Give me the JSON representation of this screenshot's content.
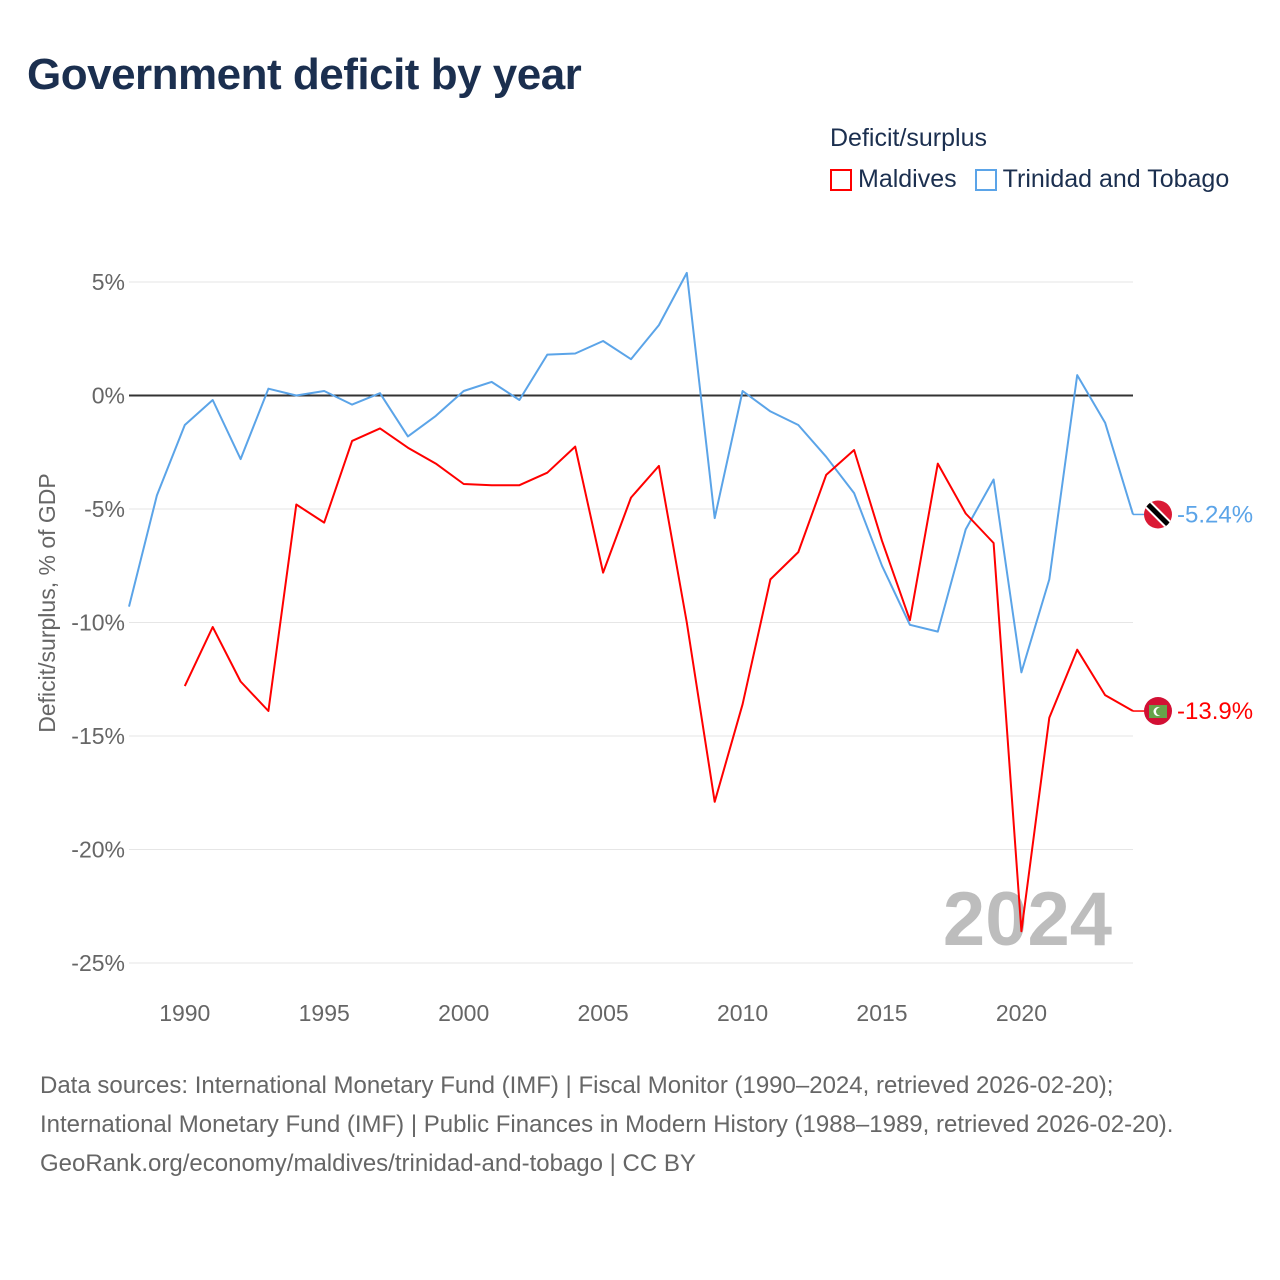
{
  "title": "Government deficit by year",
  "legend": {
    "title": "Deficit/surplus",
    "items": [
      {
        "label": "Maldives",
        "color": "#ff0000"
      },
      {
        "label": "Trinidad and Tobago",
        "color": "#5ba4e8"
      }
    ]
  },
  "chart_data": {
    "type": "line",
    "title": "Government deficit by year",
    "ylabel": "Deficit/surplus, % of GDP",
    "xlabel": "",
    "ylim": [
      -25,
      5
    ],
    "xlim": [
      1988,
      2024
    ],
    "yticks": [
      5,
      0,
      -5,
      -10,
      -15,
      -20,
      -25
    ],
    "ytick_labels": [
      "5%",
      "0%",
      "-5%",
      "-10%",
      "-15%",
      "-20%",
      "-25%"
    ],
    "xticks": [
      1990,
      1995,
      2000,
      2005,
      2010,
      2015,
      2020
    ],
    "xtick_labels": [
      "1990",
      "1995",
      "2000",
      "2005",
      "2010",
      "2015",
      "2020"
    ],
    "watermark_year": "2024",
    "grid": true,
    "series": [
      {
        "name": "Maldives",
        "color": "#ff0000",
        "end_label": "-13.9%",
        "flag": "maldives-flag",
        "x": [
          1990,
          1991,
          1992,
          1993,
          1994,
          1995,
          1996,
          1997,
          1998,
          1999,
          2000,
          2001,
          2002,
          2003,
          2004,
          2005,
          2006,
          2007,
          2008,
          2009,
          2010,
          2011,
          2012,
          2013,
          2014,
          2015,
          2016,
          2017,
          2018,
          2019,
          2020,
          2021,
          2022,
          2023,
          2024
        ],
        "values": [
          -12.8,
          -10.2,
          -12.6,
          -13.9,
          -4.8,
          -5.6,
          -2.0,
          -1.45,
          -2.3,
          -3.0,
          -3.9,
          -3.95,
          -3.95,
          -3.4,
          -2.25,
          -7.8,
          -4.5,
          -3.1,
          -10.0,
          -17.9,
          -13.6,
          -8.1,
          -6.9,
          -3.5,
          -2.4,
          -6.4,
          -9.9,
          -3.0,
          -5.2,
          -6.5,
          -23.6,
          -14.2,
          -11.2,
          -13.2,
          -13.9
        ]
      },
      {
        "name": "Trinidad and Tobago",
        "color": "#5ba4e8",
        "end_label": "-5.24%",
        "flag": "trinidad-flag",
        "x": [
          1988,
          1989,
          1990,
          1991,
          1992,
          1993,
          1994,
          1995,
          1996,
          1997,
          1998,
          1999,
          2000,
          2001,
          2002,
          2003,
          2004,
          2005,
          2006,
          2007,
          2008,
          2009,
          2010,
          2011,
          2012,
          2013,
          2014,
          2015,
          2016,
          2017,
          2018,
          2019,
          2020,
          2021,
          2022,
          2023,
          2024
        ],
        "values": [
          -9.3,
          -4.4,
          -1.3,
          -0.2,
          -2.8,
          0.3,
          0.0,
          0.2,
          -0.4,
          0.1,
          -1.8,
          -0.9,
          0.2,
          0.6,
          -0.2,
          1.8,
          1.85,
          2.4,
          1.6,
          3.1,
          5.4,
          -5.4,
          0.2,
          -0.7,
          -1.3,
          -2.7,
          -4.3,
          -7.5,
          -10.1,
          -10.4,
          -5.9,
          -3.7,
          -12.2,
          -8.1,
          0.9,
          -1.2,
          -5.24
        ]
      }
    ]
  },
  "footer": {
    "sources": "Data sources: International Monetary Fund (IMF) | Fiscal Monitor (1990–2024, retrieved 2026-02-20); International Monetary Fund (IMF) | Public Finances in Modern History (1988–1989, retrieved 2026-02-20).",
    "credit": "GeoRank.org/economy/maldives/trinidad-and-tobago | CC BY"
  }
}
